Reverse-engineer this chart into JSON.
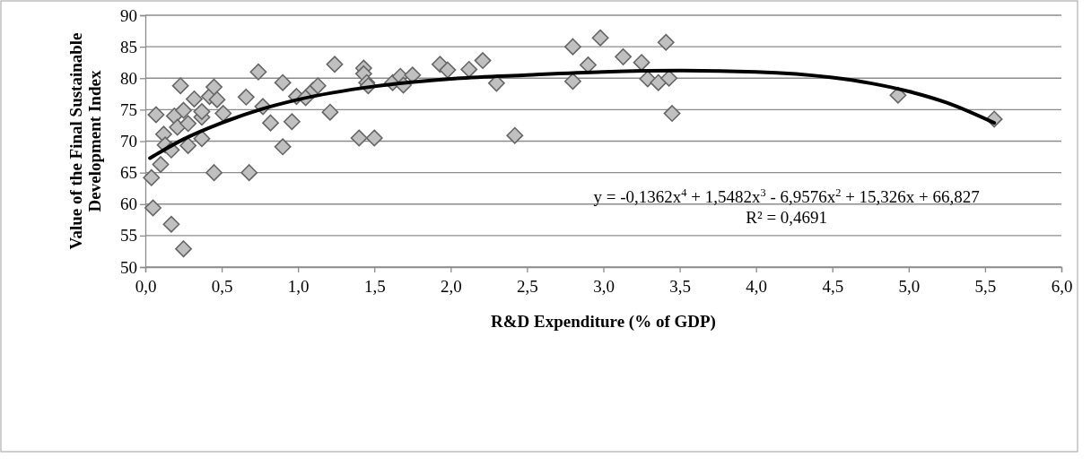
{
  "chart_data": {
    "type": "scatter",
    "xlabel": "R&D Expenditure (% of GDP)",
    "ylabel": "Value of the Final Sustainable Development Index",
    "xlim": [
      0,
      6
    ],
    "ylim": [
      50,
      90
    ],
    "xticks": [
      {
        "value": 0,
        "label": "0,0"
      },
      {
        "value": 0.5,
        "label": "0,5"
      },
      {
        "value": 1,
        "label": "1,0"
      },
      {
        "value": 1.5,
        "label": "1,5"
      },
      {
        "value": 2,
        "label": "2,0"
      },
      {
        "value": 2.5,
        "label": "2,5"
      },
      {
        "value": 3,
        "label": "3,0"
      },
      {
        "value": 3.5,
        "label": "3,5"
      },
      {
        "value": 4,
        "label": "4,0"
      },
      {
        "value": 4.5,
        "label": "4,5"
      },
      {
        "value": 5,
        "label": "5,0"
      },
      {
        "value": 5.5,
        "label": "5,5"
      },
      {
        "value": 6,
        "label": "6,0"
      }
    ],
    "yticks": [
      50,
      55,
      60,
      65,
      70,
      75,
      80,
      85,
      90
    ],
    "grid": "y",
    "annotations": [
      "y = -0,1362x$^{4}$ + 1,5482x$^{3}$ - 6,9576x$^{2}$ + 15,326x + 66,827",
      "R² = 0,4691"
    ],
    "series": [
      {
        "type": "scatter",
        "color": "#c0c0c0",
        "marker": "diamond",
        "x": [
          0.04,
          0.05,
          0.07,
          0.1,
          0.12,
          0.13,
          0.17,
          0.17,
          0.19,
          0.21,
          0.23,
          0.25,
          0.25,
          0.28,
          0.28,
          0.32,
          0.37,
          0.37,
          0.37,
          0.42,
          0.45,
          0.45,
          0.47,
          0.51,
          0.66,
          0.68,
          0.74,
          0.77,
          0.82,
          0.9,
          0.9,
          0.96,
          0.99,
          1.05,
          1.1,
          1.13,
          1.21,
          1.24,
          1.4,
          1.43,
          1.43,
          1.45,
          1.46,
          1.5,
          1.62,
          1.67,
          1.69,
          1.75,
          1.93,
          1.98,
          2.12,
          2.21,
          2.3,
          2.42,
          2.8,
          2.8,
          2.9,
          2.98,
          3.13,
          3.25,
          3.29,
          3.36,
          3.41,
          3.43,
          3.45,
          4.93,
          5.56
        ],
        "values": [
          64.2,
          59.4,
          74.2,
          66.3,
          71.1,
          69.4,
          68.6,
          56.8,
          74.0,
          72.2,
          78.8,
          74.9,
          52.9,
          72.8,
          69.3,
          76.7,
          73.8,
          74.7,
          70.4,
          77.1,
          65.0,
          78.6,
          76.6,
          74.4,
          77.0,
          65.0,
          81.0,
          75.5,
          72.9,
          79.3,
          69.1,
          73.1,
          77.1,
          76.9,
          78.1,
          78.8,
          74.6,
          82.2,
          70.5,
          81.6,
          80.7,
          79.3,
          78.8,
          70.5,
          79.3,
          80.3,
          78.9,
          80.5,
          82.2,
          81.3,
          81.4,
          82.8,
          79.2,
          70.9,
          85.0,
          79.5,
          82.1,
          86.4,
          83.4,
          82.5,
          79.9,
          79.3,
          85.7,
          80.0,
          74.4,
          77.3,
          73.5
        ]
      },
      {
        "type": "line",
        "color": "#000000",
        "marker": "none",
        "line_style": "solid",
        "x": [
          0.03,
          0.1,
          0.25,
          0.5,
          0.75,
          1,
          1.5,
          2,
          2.5,
          3,
          3.5,
          4,
          4.5,
          4.75,
          5,
          5.25,
          5.56
        ],
        "values": [
          67.3,
          68.3,
          70.3,
          72.9,
          75.0,
          76.6,
          78.7,
          79.9,
          80.5,
          81.0,
          81.2,
          81.0,
          80.1,
          79.2,
          77.9,
          76.1,
          72.9
        ]
      }
    ]
  }
}
